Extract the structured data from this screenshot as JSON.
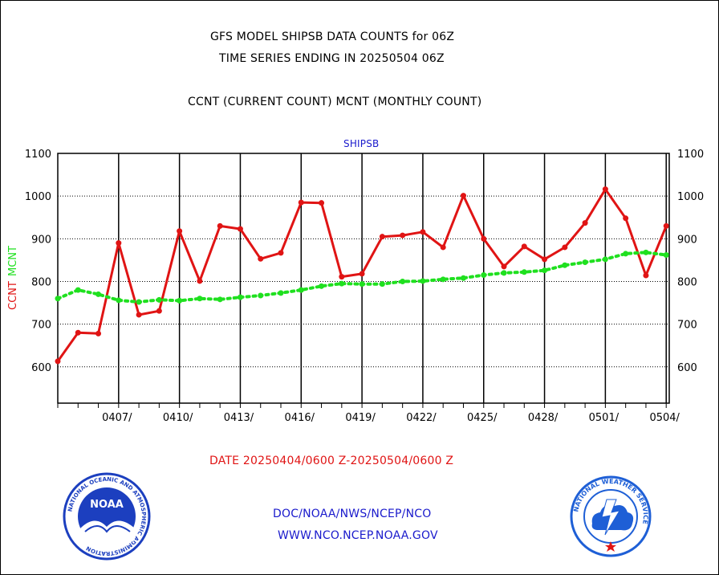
{
  "header": {
    "title_line1": "GFS MODEL SHIPSB DATA COUNTS for 06Z",
    "title_line2": "TIME SERIES ENDING IN 20250504 06Z",
    "subtitle": "CCNT (CURRENT COUNT) MCNT (MONTHLY COUNT)"
  },
  "chart_data": {
    "type": "line",
    "title": "SHIPSB",
    "ylabel_ccnt": "CCNT",
    "ylabel_mcnt": "MCNT",
    "xlabel": "DATE 20250404/0600 Z-20250504/0600 Z",
    "ylim": [
      515,
      1100
    ],
    "yticks": [
      600,
      700,
      800,
      900,
      1000,
      1100
    ],
    "grid": true,
    "x_start": "2025-04-04",
    "x_end": "2025-05-04",
    "xtick_labels": [
      "0407/",
      "0410/",
      "0413/",
      "0416/",
      "0419/",
      "0422/",
      "0425/",
      "0428/",
      "0501/",
      "0504/"
    ],
    "series": [
      {
        "name": "CCNT",
        "color": "#e01414",
        "style": "solid",
        "x": [
          "2025-04-04",
          "2025-04-05",
          "2025-04-06",
          "2025-04-07",
          "2025-04-08",
          "2025-04-09",
          "2025-04-10",
          "2025-04-11",
          "2025-04-12",
          "2025-04-13",
          "2025-04-14",
          "2025-04-15",
          "2025-04-16",
          "2025-04-17",
          "2025-04-18",
          "2025-04-19",
          "2025-04-20",
          "2025-04-21",
          "2025-04-22",
          "2025-04-23",
          "2025-04-24",
          "2025-04-25",
          "2025-04-26",
          "2025-04-27",
          "2025-04-28",
          "2025-04-29",
          "2025-04-30",
          "2025-05-01",
          "2025-05-02",
          "2025-05-03",
          "2025-05-04"
        ],
        "values": [
          613,
          680,
          678,
          890,
          722,
          731,
          918,
          801,
          930,
          923,
          853,
          867,
          985,
          984,
          811,
          818,
          905,
          908,
          916,
          880,
          1001,
          900,
          835,
          882,
          852,
          880,
          937,
          1016,
          948,
          814,
          930
        ]
      },
      {
        "name": "MCNT",
        "color": "#1fe01f",
        "style": "dotted",
        "x": [
          "2025-04-04",
          "2025-04-05",
          "2025-04-06",
          "2025-04-07",
          "2025-04-08",
          "2025-04-09",
          "2025-04-10",
          "2025-04-11",
          "2025-04-12",
          "2025-04-13",
          "2025-04-14",
          "2025-04-15",
          "2025-04-16",
          "2025-04-17",
          "2025-04-18",
          "2025-04-19",
          "2025-04-20",
          "2025-04-21",
          "2025-04-22",
          "2025-04-23",
          "2025-04-24",
          "2025-04-25",
          "2025-04-26",
          "2025-04-27",
          "2025-04-28",
          "2025-04-29",
          "2025-04-30",
          "2025-05-01",
          "2025-05-02",
          "2025-05-03",
          "2025-05-04"
        ],
        "values": [
          760,
          780,
          770,
          756,
          752,
          757,
          755,
          760,
          758,
          763,
          767,
          773,
          780,
          789,
          795,
          794,
          794,
          800,
          801,
          805,
          808,
          815,
          820,
          822,
          826,
          838,
          845,
          852,
          865,
          868,
          862
        ]
      }
    ]
  },
  "footer": {
    "agency_line1": "DOC/NOAA/NWS/NCEP/NCO",
    "agency_line2": "WWW.NCO.NCEP.NOAA.GOV",
    "noaa_logo_text": "NOAA",
    "noaa_ring_text": "NATIONAL OCEANIC AND ATMOSPHERIC ADMINISTRATION",
    "noaa_dept_text": "U.S. DEPARTMENT OF COMMERCE",
    "nws_ring_text": "NATIONAL WEATHER SERVICE"
  },
  "colors": {
    "ccnt": "#e01414",
    "mcnt": "#1fe01f",
    "label_blue": "#1a1acc",
    "noaa_blue": "#1c3fbf",
    "nws_blue": "#1e5fd6"
  }
}
